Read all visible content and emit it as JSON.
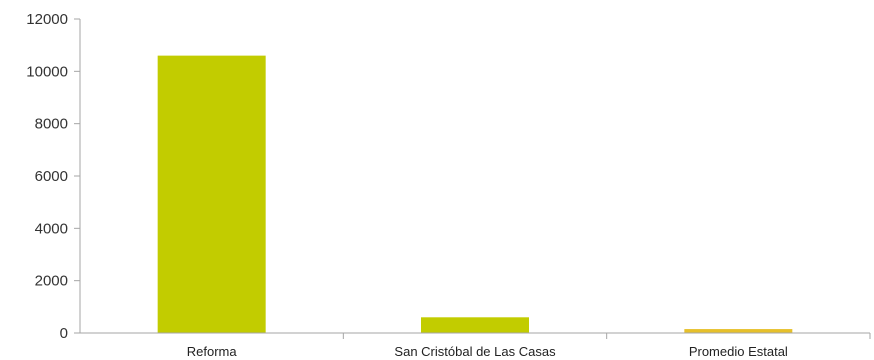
{
  "chart_data": {
    "type": "bar",
    "categories": [
      "Reforma",
      "San Cristóbal de Las Casas",
      "Promedio Estatal"
    ],
    "values": [
      10600,
      600,
      150
    ],
    "colors": [
      "#c2cc00",
      "#c2cc00",
      "#e6c02a"
    ],
    "yticks": [
      "0",
      "2000",
      "4000",
      "6000",
      "8000",
      "10000",
      "12000"
    ],
    "ylim": [
      0,
      12000
    ],
    "grid": false,
    "legend": "none"
  }
}
